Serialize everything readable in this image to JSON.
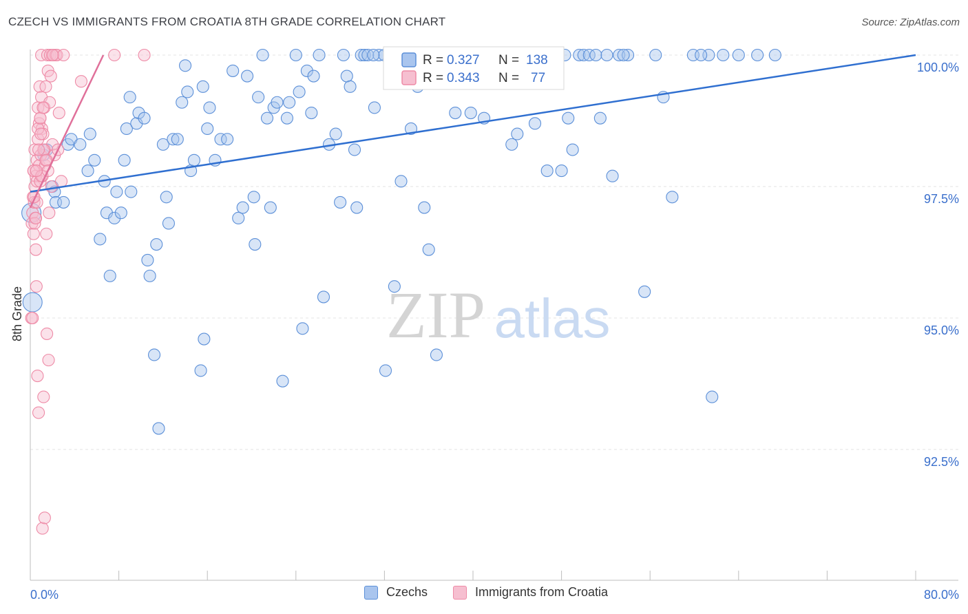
{
  "header": {
    "title": "CZECH VS IMMIGRANTS FROM CROATIA 8TH GRADE CORRELATION CHART",
    "source": "Source: ZipAtlas.com"
  },
  "watermark": {
    "zip": "ZIP",
    "atlas": "atlas"
  },
  "legend_stats": [
    {
      "r_label": "R =",
      "r_value": "0.327",
      "n_label": "N =",
      "n_value": "138",
      "color": "#5b8fd8"
    },
    {
      "r_label": "R =",
      "r_value": "0.343",
      "n_label": "N =",
      "n_value": "77",
      "color": "#ee8aa6"
    }
  ],
  "chart_data": {
    "type": "scatter",
    "title": "CZECH VS IMMIGRANTS FROM CROATIA 8TH GRADE CORRELATION CHART",
    "xlabel": "",
    "ylabel": "8th Grade",
    "xlim": [
      0,
      80
    ],
    "ylim": [
      90.5,
      100.3
    ],
    "x_tick_labels": [
      "0.0%",
      "80.0%"
    ],
    "y_ticks": [
      {
        "value": 92.5,
        "label": "92.5%"
      },
      {
        "value": 95.0,
        "label": "95.0%"
      },
      {
        "value": 97.5,
        "label": "97.5%"
      },
      {
        "value": 100.0,
        "label": "100.0%"
      }
    ],
    "grid": true,
    "legend_placement": "bottom-center",
    "series": [
      {
        "name": "Czechs",
        "color": "#5b8fd8",
        "fill": "#a9c5ee",
        "trend": {
          "x0": 0,
          "y0": 97.4,
          "x1": 80,
          "y1": 100.0
        },
        "points": [
          [
            0.1,
            97.0
          ],
          [
            0.2,
            95.3
          ],
          [
            1.2,
            98.1
          ],
          [
            1.5,
            98.2
          ],
          [
            2.0,
            97.5
          ],
          [
            2.2,
            97.4
          ],
          [
            2.3,
            97.2
          ],
          [
            3.0,
            97.2
          ],
          [
            3.4,
            98.3
          ],
          [
            3.7,
            98.4
          ],
          [
            4.5,
            98.3
          ],
          [
            5.2,
            97.8
          ],
          [
            5.4,
            98.5
          ],
          [
            5.8,
            98.0
          ],
          [
            6.3,
            96.5
          ],
          [
            6.7,
            97.6
          ],
          [
            6.9,
            97.0
          ],
          [
            7.2,
            95.8
          ],
          [
            7.6,
            96.9
          ],
          [
            7.8,
            97.4
          ],
          [
            8.2,
            97.0
          ],
          [
            8.5,
            98.0
          ],
          [
            8.7,
            98.6
          ],
          [
            9.0,
            99.2
          ],
          [
            9.1,
            97.4
          ],
          [
            9.6,
            98.7
          ],
          [
            9.8,
            98.9
          ],
          [
            10.3,
            98.8
          ],
          [
            10.6,
            96.1
          ],
          [
            10.8,
            95.8
          ],
          [
            11.2,
            94.3
          ],
          [
            11.4,
            96.4
          ],
          [
            11.6,
            92.9
          ],
          [
            12.0,
            98.3
          ],
          [
            12.3,
            97.3
          ],
          [
            12.5,
            96.8
          ],
          [
            12.9,
            98.4
          ],
          [
            13.3,
            98.4
          ],
          [
            13.7,
            99.1
          ],
          [
            14.0,
            99.8
          ],
          [
            14.2,
            99.3
          ],
          [
            14.5,
            97.8
          ],
          [
            14.8,
            98.0
          ],
          [
            15.4,
            94.0
          ],
          [
            15.6,
            99.4
          ],
          [
            15.7,
            94.6
          ],
          [
            16.0,
            98.6
          ],
          [
            16.2,
            99.0
          ],
          [
            16.7,
            98.0
          ],
          [
            17.2,
            98.4
          ],
          [
            17.8,
            98.4
          ],
          [
            18.3,
            99.7
          ],
          [
            18.8,
            96.9
          ],
          [
            19.2,
            97.1
          ],
          [
            19.6,
            99.6
          ],
          [
            20.2,
            97.3
          ],
          [
            20.3,
            96.4
          ],
          [
            20.6,
            99.2
          ],
          [
            21.0,
            100.0
          ],
          [
            21.4,
            98.8
          ],
          [
            21.7,
            97.1
          ],
          [
            22.0,
            99.0
          ],
          [
            22.3,
            99.1
          ],
          [
            22.8,
            93.8
          ],
          [
            23.2,
            98.8
          ],
          [
            23.4,
            99.1
          ],
          [
            24.0,
            100.0
          ],
          [
            24.3,
            99.3
          ],
          [
            24.6,
            94.8
          ],
          [
            25.0,
            99.7
          ],
          [
            25.4,
            98.9
          ],
          [
            25.6,
            99.6
          ],
          [
            26.1,
            100.0
          ],
          [
            26.5,
            95.4
          ],
          [
            27.0,
            98.3
          ],
          [
            27.6,
            98.5
          ],
          [
            28.0,
            97.2
          ],
          [
            28.3,
            100.0
          ],
          [
            28.6,
            99.6
          ],
          [
            28.9,
            99.4
          ],
          [
            29.3,
            98.2
          ],
          [
            29.5,
            97.1
          ],
          [
            29.9,
            100.0
          ],
          [
            30.2,
            100.0
          ],
          [
            30.5,
            100.0
          ],
          [
            31.1,
            99.0
          ],
          [
            31.5,
            100.0
          ],
          [
            32.0,
            100.0
          ],
          [
            32.1,
            94.0
          ],
          [
            32.9,
            95.6
          ],
          [
            33.2,
            100.0
          ],
          [
            33.5,
            97.6
          ],
          [
            34.0,
            100.0
          ],
          [
            34.4,
            98.6
          ],
          [
            35.0,
            99.4
          ],
          [
            35.4,
            100.0
          ],
          [
            35.6,
            97.1
          ],
          [
            36.0,
            96.3
          ],
          [
            36.5,
            100.0
          ],
          [
            36.7,
            94.3
          ],
          [
            37.2,
            100.0
          ],
          [
            37.8,
            100.0
          ],
          [
            38.4,
            98.9
          ],
          [
            39.0,
            100.0
          ],
          [
            39.8,
            98.9
          ],
          [
            40.2,
            100.0
          ],
          [
            40.5,
            100.0
          ],
          [
            41.0,
            98.8
          ],
          [
            41.6,
            100.0
          ],
          [
            42.1,
            100.0
          ],
          [
            42.5,
            100.0
          ],
          [
            43.5,
            98.3
          ],
          [
            44.0,
            98.5
          ],
          [
            45.0,
            100.0
          ],
          [
            45.6,
            98.7
          ],
          [
            46.2,
            100.0
          ],
          [
            46.7,
            97.8
          ],
          [
            47.3,
            100.0
          ],
          [
            48.0,
            97.8
          ],
          [
            48.6,
            98.8
          ],
          [
            49.0,
            98.2
          ],
          [
            49.6,
            100.0
          ],
          [
            50.0,
            100.0
          ],
          [
            50.5,
            100.0
          ],
          [
            51.1,
            100.0
          ],
          [
            51.5,
            98.8
          ],
          [
            52.1,
            100.0
          ],
          [
            52.6,
            97.7
          ],
          [
            53.2,
            100.0
          ],
          [
            54.0,
            100.0
          ],
          [
            55.5,
            95.5
          ],
          [
            56.5,
            100.0
          ],
          [
            57.2,
            99.2
          ],
          [
            58.0,
            97.3
          ],
          [
            59.9,
            100.0
          ],
          [
            61.3,
            100.0
          ],
          [
            62.6,
            100.0
          ],
          [
            64.0,
            100.0
          ],
          [
            65.7,
            100.0
          ],
          [
            61.6,
            93.5
          ],
          [
            67.3,
            100.0
          ],
          [
            44.8,
            100.0
          ],
          [
            31.0,
            100.0
          ],
          [
            48.3,
            100.0
          ],
          [
            53.6,
            100.0
          ],
          [
            60.6,
            100.0
          ],
          [
            33.7,
            100.0
          ],
          [
            38.7,
            100.0
          ]
        ]
      },
      {
        "name": "Immigrants from Croatia",
        "color": "#ee8aa6",
        "fill": "#f6bfd0",
        "trend": {
          "x0": 0,
          "y0": 97.1,
          "x1": 6.6,
          "y1": 100.0
        },
        "points": [
          [
            0.1,
            95.0
          ],
          [
            0.15,
            96.8
          ],
          [
            0.2,
            97.0
          ],
          [
            0.25,
            97.3
          ],
          [
            0.3,
            96.6
          ],
          [
            0.3,
            97.8
          ],
          [
            0.35,
            97.2
          ],
          [
            0.4,
            98.2
          ],
          [
            0.4,
            97.5
          ],
          [
            0.45,
            96.9
          ],
          [
            0.5,
            97.7
          ],
          [
            0.5,
            96.3
          ],
          [
            0.55,
            95.6
          ],
          [
            0.6,
            98.0
          ],
          [
            0.6,
            97.6
          ],
          [
            0.65,
            93.9
          ],
          [
            0.7,
            99.0
          ],
          [
            0.7,
            98.4
          ],
          [
            0.75,
            93.2
          ],
          [
            0.8,
            98.7
          ],
          [
            0.8,
            97.9
          ],
          [
            0.85,
            99.4
          ],
          [
            0.9,
            98.8
          ],
          [
            0.9,
            97.6
          ],
          [
            0.95,
            98.1
          ],
          [
            1.0,
            100.0
          ],
          [
            1.0,
            99.2
          ],
          [
            1.05,
            98.6
          ],
          [
            1.1,
            97.7
          ],
          [
            1.1,
            91.0
          ],
          [
            1.15,
            98.5
          ],
          [
            1.2,
            93.5
          ],
          [
            1.25,
            99.0
          ],
          [
            1.3,
            98.2
          ],
          [
            1.3,
            91.2
          ],
          [
            1.35,
            97.9
          ],
          [
            1.4,
            99.4
          ],
          [
            1.45,
            96.6
          ],
          [
            1.5,
            94.7
          ],
          [
            1.5,
            98.0
          ],
          [
            1.55,
            100.0
          ],
          [
            1.6,
            99.7
          ],
          [
            1.65,
            94.2
          ],
          [
            1.7,
            97.0
          ],
          [
            1.75,
            99.1
          ],
          [
            1.8,
            100.0
          ],
          [
            1.85,
            99.6
          ],
          [
            1.9,
            97.5
          ],
          [
            2.0,
            98.3
          ],
          [
            2.1,
            100.0
          ],
          [
            2.2,
            98.1
          ],
          [
            2.3,
            100.0
          ],
          [
            2.4,
            100.0
          ],
          [
            2.6,
            98.9
          ],
          [
            2.8,
            97.6
          ],
          [
            3.0,
            100.0
          ],
          [
            4.6,
            99.5
          ],
          [
            7.6,
            100.0
          ],
          [
            10.3,
            100.0
          ],
          [
            0.2,
            95.0
          ],
          [
            0.3,
            97.8
          ],
          [
            0.4,
            96.8
          ],
          [
            0.5,
            96.9
          ],
          [
            0.6,
            97.2
          ],
          [
            0.7,
            98.6
          ],
          [
            0.9,
            98.8
          ],
          [
            1.0,
            97.7
          ],
          [
            1.2,
            98.2
          ],
          [
            1.4,
            98.0
          ],
          [
            1.6,
            97.8
          ],
          [
            2.0,
            100.0
          ],
          [
            2.5,
            98.2
          ],
          [
            0.35,
            97.3
          ],
          [
            0.55,
            97.8
          ],
          [
            0.75,
            98.2
          ],
          [
            0.95,
            98.5
          ],
          [
            1.15,
            99.0
          ]
        ]
      }
    ]
  }
}
